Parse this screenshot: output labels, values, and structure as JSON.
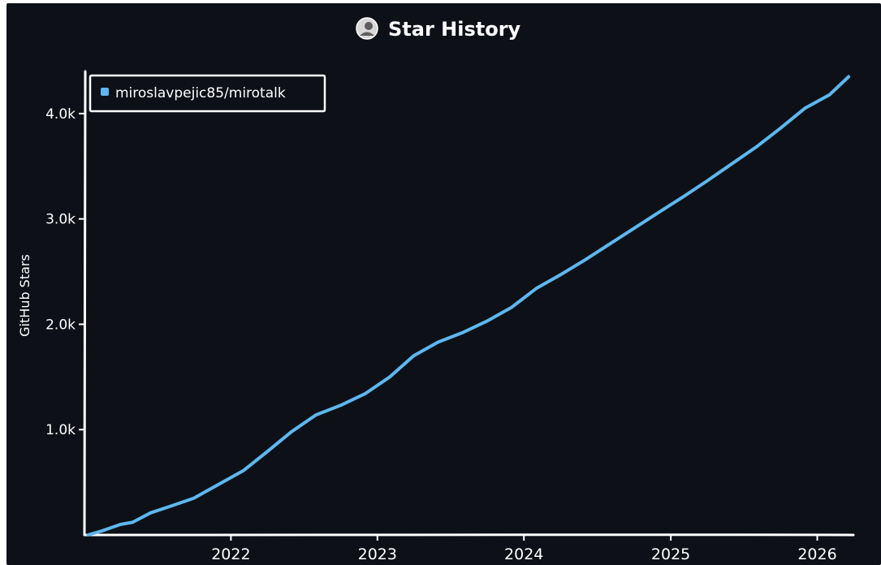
{
  "header": {
    "title": "Star History",
    "avatar_icon": "user-avatar-icon"
  },
  "colors": {
    "background": "#0d1117",
    "axis": "#ffffff",
    "series": "#5db7f0"
  },
  "chart_data": {
    "type": "line",
    "title": "Star History",
    "xlabel": "",
    "ylabel": "GitHub Stars",
    "x_ticks": [
      "2022",
      "2023",
      "2024",
      "2025",
      "2026"
    ],
    "y_ticks": [
      "1.0k",
      "2.0k",
      "3.0k",
      "4.0k"
    ],
    "y_tick_values": [
      1000,
      2000,
      3000,
      4000
    ],
    "xlim": [
      "2021-01-01",
      "2026-04-01"
    ],
    "ylim": [
      0,
      4400
    ],
    "legend": "top-left",
    "grid": false,
    "series": [
      {
        "name": "miroslavpejic85/mirotalk",
        "color": "#5db7f0",
        "points": [
          [
            "2021-01-10",
            0
          ],
          [
            "2021-02-15",
            40
          ],
          [
            "2021-04-01",
            100
          ],
          [
            "2021-05-01",
            120
          ],
          [
            "2021-06-15",
            210
          ],
          [
            "2021-08-01",
            270
          ],
          [
            "2021-10-01",
            350
          ],
          [
            "2021-12-01",
            480
          ],
          [
            "2022-02-01",
            610
          ],
          [
            "2022-04-01",
            790
          ],
          [
            "2022-06-01",
            980
          ],
          [
            "2022-08-01",
            1140
          ],
          [
            "2022-10-01",
            1230
          ],
          [
            "2022-12-01",
            1340
          ],
          [
            "2023-02-01",
            1500
          ],
          [
            "2023-04-01",
            1700
          ],
          [
            "2023-06-01",
            1830
          ],
          [
            "2023-08-01",
            1920
          ],
          [
            "2023-10-01",
            2030
          ],
          [
            "2023-12-01",
            2160
          ],
          [
            "2024-02-01",
            2340
          ],
          [
            "2024-04-01",
            2470
          ],
          [
            "2024-06-01",
            2610
          ],
          [
            "2024-08-01",
            2760
          ],
          [
            "2024-10-01",
            2910
          ],
          [
            "2024-12-01",
            3060
          ],
          [
            "2025-02-01",
            3210
          ],
          [
            "2025-04-01",
            3360
          ],
          [
            "2025-06-01",
            3520
          ],
          [
            "2025-08-01",
            3680
          ],
          [
            "2025-10-01",
            3860
          ],
          [
            "2025-12-01",
            4050
          ],
          [
            "2026-02-01",
            4180
          ],
          [
            "2026-03-20",
            4350
          ]
        ]
      }
    ]
  }
}
